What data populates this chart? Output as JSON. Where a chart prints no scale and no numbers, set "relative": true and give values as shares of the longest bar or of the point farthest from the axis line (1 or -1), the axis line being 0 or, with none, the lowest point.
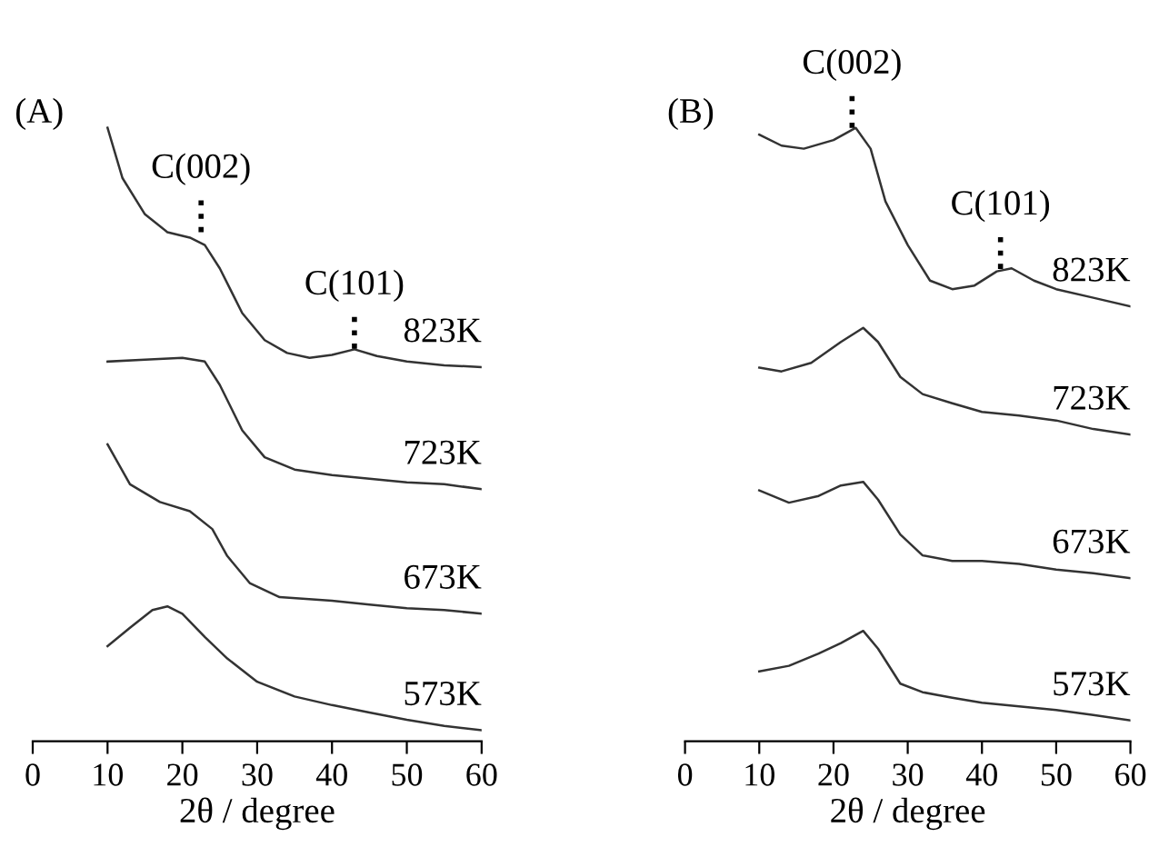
{
  "chart_data": [
    {
      "type": "line",
      "title": "(A)",
      "xlabel": "2θ / degree",
      "relative": true,
      "xlim": [
        0,
        60
      ],
      "xticks": [
        0,
        10,
        20,
        30,
        40,
        50,
        60
      ],
      "tick_labels": "x",
      "grid": false,
      "legend": false,
      "annotations": [
        {
          "text": "C(002)",
          "x": 22.5,
          "y": 0.83
        },
        {
          "text": "C(101)",
          "x": 43,
          "y": 0.64
        }
      ],
      "series": [
        {
          "name": "823K",
          "color": "#333333",
          "x": [
            10,
            12,
            15,
            18,
            21,
            23,
            25,
            28,
            31,
            34,
            37,
            40,
            43,
            46,
            50,
            55,
            60
          ],
          "values": [
            1.0,
            0.918,
            0.859,
            0.83,
            0.821,
            0.809,
            0.771,
            0.698,
            0.654,
            0.633,
            0.625,
            0.63,
            0.639,
            0.628,
            0.619,
            0.613,
            0.61
          ]
        },
        {
          "name": "723K",
          "color": "#333333",
          "x": [
            10,
            15,
            20,
            23,
            25,
            28,
            31,
            35,
            40,
            45,
            50,
            55,
            60
          ],
          "values": [
            0.619,
            0.622,
            0.625,
            0.619,
            0.581,
            0.507,
            0.463,
            0.443,
            0.434,
            0.428,
            0.422,
            0.419,
            0.411
          ]
        },
        {
          "name": "673K",
          "color": "#333333",
          "x": [
            10,
            13,
            17,
            21,
            24,
            26,
            29,
            33,
            40,
            45,
            50,
            55,
            60
          ],
          "values": [
            0.484,
            0.419,
            0.39,
            0.375,
            0.346,
            0.302,
            0.258,
            0.235,
            0.229,
            0.223,
            0.217,
            0.214,
            0.208
          ]
        },
        {
          "name": "573K",
          "color": "#333333",
          "x": [
            10,
            13,
            16,
            18,
            20,
            23,
            26,
            30,
            35,
            40,
            45,
            50,
            55,
            60
          ],
          "values": [
            0.155,
            0.185,
            0.214,
            0.22,
            0.208,
            0.17,
            0.135,
            0.097,
            0.073,
            0.059,
            0.047,
            0.035,
            0.025,
            0.018
          ]
        }
      ]
    },
    {
      "type": "line",
      "title": "(B)",
      "xlabel": "2θ / degree",
      "relative": true,
      "xlim": [
        0,
        60
      ],
      "xticks": [
        0,
        10,
        20,
        30,
        40,
        50,
        60
      ],
      "tick_labels": "x",
      "grid": false,
      "legend": false,
      "annotations": [
        {
          "text": "C(002)",
          "x": 22.5,
          "y": 1.0
        },
        {
          "text": "C(101)",
          "x": 42.5,
          "y": 0.77
        }
      ],
      "series": [
        {
          "name": "823K",
          "color": "#333333",
          "x": [
            10,
            13,
            16,
            20,
            23,
            25,
            27,
            30,
            33,
            36,
            39,
            42,
            44,
            47,
            50,
            55,
            60
          ],
          "values": [
            0.989,
            0.971,
            0.966,
            0.98,
            1.0,
            0.966,
            0.88,
            0.809,
            0.751,
            0.737,
            0.743,
            0.766,
            0.771,
            0.751,
            0.737,
            0.723,
            0.709
          ]
        },
        {
          "name": "723K",
          "color": "#333333",
          "x": [
            10,
            13,
            17,
            21,
            24,
            26,
            29,
            32,
            36,
            40,
            45,
            50,
            55,
            60
          ],
          "values": [
            0.609,
            0.603,
            0.617,
            0.651,
            0.674,
            0.651,
            0.594,
            0.566,
            0.551,
            0.537,
            0.531,
            0.523,
            0.509,
            0.5
          ]
        },
        {
          "name": "673K",
          "color": "#333333",
          "x": [
            10,
            14,
            18,
            21,
            24,
            26,
            29,
            32,
            36,
            40,
            45,
            50,
            55,
            60
          ],
          "values": [
            0.409,
            0.389,
            0.4,
            0.417,
            0.423,
            0.394,
            0.337,
            0.303,
            0.294,
            0.294,
            0.289,
            0.28,
            0.274,
            0.266
          ]
        },
        {
          "name": "573K",
          "color": "#333333",
          "x": [
            10,
            14,
            18,
            21,
            24,
            26,
            29,
            32,
            36,
            40,
            45,
            50,
            55,
            60
          ],
          "values": [
            0.114,
            0.123,
            0.143,
            0.16,
            0.18,
            0.151,
            0.094,
            0.08,
            0.071,
            0.063,
            0.057,
            0.051,
            0.043,
            0.034
          ]
        }
      ]
    }
  ]
}
